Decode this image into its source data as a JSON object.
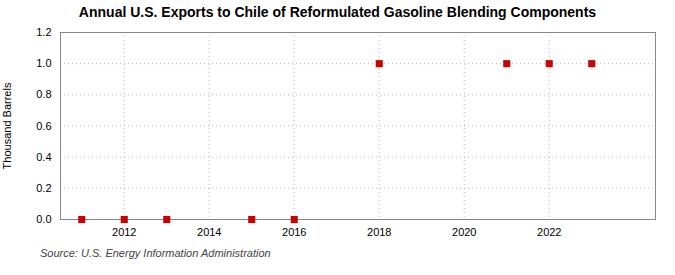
{
  "chart_data": {
    "type": "scatter",
    "title": "Annual U.S. Exports to Chile of Reformulated Gasoline Blending Components",
    "ylabel": "Thousand Barrels",
    "source": "Source: U.S. Energy Information Administration",
    "x": [
      2011,
      2012,
      2013,
      2015,
      2016,
      2018,
      2021,
      2022,
      2023
    ],
    "values": [
      0,
      0,
      0,
      0,
      0,
      1,
      1,
      1,
      1
    ],
    "color": "#cc0000",
    "marker": "square",
    "xlim": [
      2010.5,
      2024.5
    ],
    "xticks": [
      2012,
      2014,
      2016,
      2018,
      2020,
      2022
    ],
    "ylim": [
      0,
      1.2
    ],
    "yticks": [
      {
        "value": 0,
        "label": "0.0"
      },
      0.2,
      0.4,
      0.6,
      0.8,
      {
        "value": 1,
        "label": "1.0"
      },
      1.2
    ],
    "grid": true
  }
}
